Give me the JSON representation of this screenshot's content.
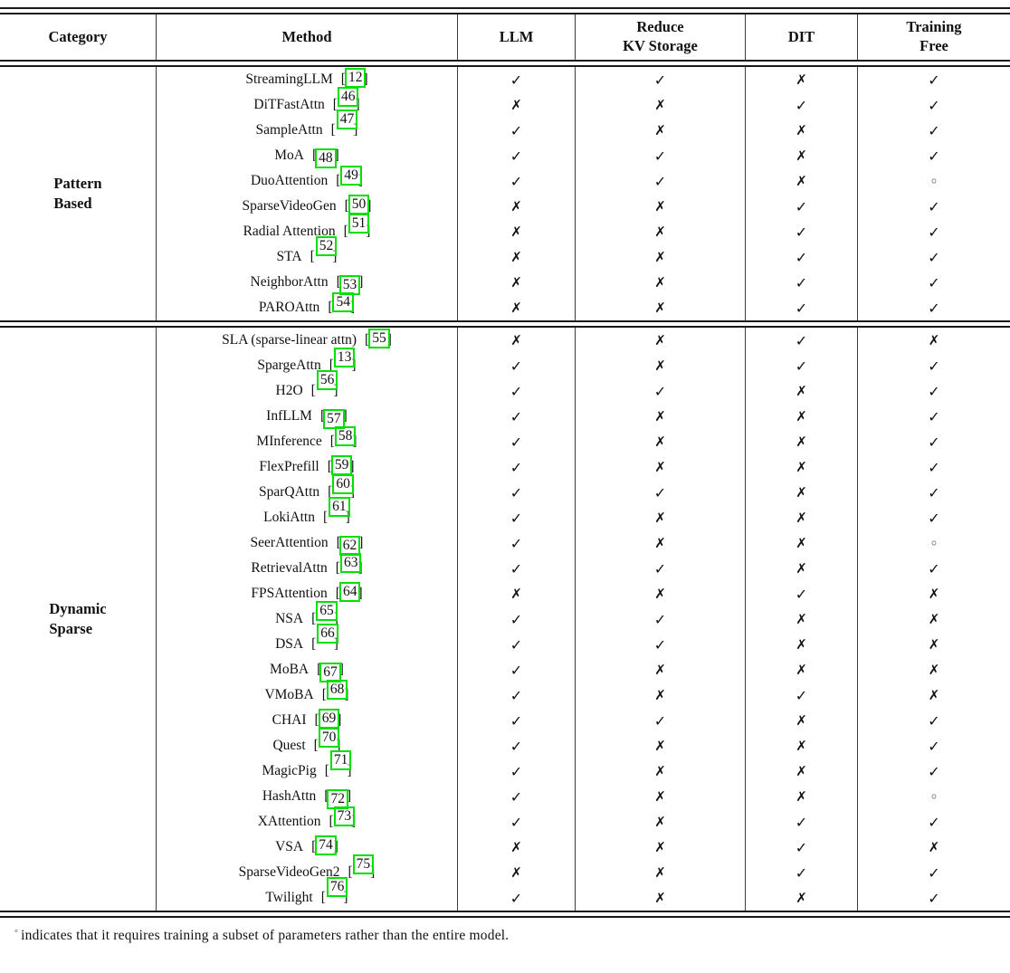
{
  "colors": {
    "citation_box": "#00e000",
    "rule": "#191919"
  },
  "footnote": {
    "symbol": "◦",
    "text": "indicates that it requires training a subset of parameters rather than the entire model."
  },
  "table": {
    "columns": [
      {
        "key": "category",
        "label": "Category"
      },
      {
        "key": "method",
        "label": "Method"
      },
      {
        "key": "llm",
        "label": "LLM"
      },
      {
        "key": "reduce_kv_storage",
        "label": "Reduce\nKV Storage"
      },
      {
        "key": "dit",
        "label": "DIT"
      },
      {
        "key": "training_free",
        "label": "Training\nFree"
      }
    ],
    "symbols": {
      "yes": "✓",
      "no": "✗",
      "partial": "◦"
    },
    "sections": [
      {
        "category": "Pattern\nBased",
        "rows": [
          {
            "method": "StreamingLLM",
            "cite": "12",
            "marks": [
              "yes",
              "yes",
              "no",
              "yes"
            ]
          },
          {
            "method": "DiTFastAttn",
            "cite": "46",
            "marks": [
              "no",
              "no",
              "yes",
              "yes"
            ]
          },
          {
            "method": "SampleAttn",
            "cite": "47",
            "marks": [
              "yes",
              "no",
              "no",
              "yes"
            ]
          },
          {
            "method": "MoA",
            "cite": "48",
            "marks": [
              "yes",
              "yes",
              "no",
              "yes"
            ]
          },
          {
            "method": "DuoAttention",
            "cite": "49",
            "marks": [
              "yes",
              "yes",
              "no",
              "partial"
            ]
          },
          {
            "method": "SparseVideoGen",
            "cite": "50",
            "marks": [
              "no",
              "no",
              "yes",
              "yes"
            ]
          },
          {
            "method": "Radial Attention",
            "cite": "51",
            "marks": [
              "no",
              "no",
              "yes",
              "yes"
            ]
          },
          {
            "method": "STA",
            "cite": "52",
            "marks": [
              "no",
              "no",
              "yes",
              "yes"
            ]
          },
          {
            "method": "NeighborAttn",
            "cite": "53",
            "marks": [
              "no",
              "no",
              "yes",
              "yes"
            ]
          },
          {
            "method": "PAROAttn",
            "cite": "54",
            "marks": [
              "no",
              "no",
              "yes",
              "yes"
            ]
          }
        ]
      },
      {
        "category": "Dynamic\nSparse",
        "rows": [
          {
            "method": "SLA (sparse-linear attn)",
            "cite": "55",
            "marks": [
              "no",
              "no",
              "yes",
              "no"
            ]
          },
          {
            "method": "SpargeAttn",
            "cite": "13",
            "marks": [
              "yes",
              "no",
              "yes",
              "yes"
            ]
          },
          {
            "method": "H2O",
            "cite": "56",
            "marks": [
              "yes",
              "yes",
              "no",
              "yes"
            ]
          },
          {
            "method": "InfLLM",
            "cite": "57",
            "marks": [
              "yes",
              "no",
              "no",
              "yes"
            ]
          },
          {
            "method": "MInference",
            "cite": "58",
            "marks": [
              "yes",
              "no",
              "no",
              "yes"
            ]
          },
          {
            "method": "FlexPrefill",
            "cite": "59",
            "marks": [
              "yes",
              "no",
              "no",
              "yes"
            ]
          },
          {
            "method": "SparQAttn",
            "cite": "60",
            "marks": [
              "yes",
              "yes",
              "no",
              "yes"
            ]
          },
          {
            "method": "LokiAttn",
            "cite": "61",
            "marks": [
              "yes",
              "no",
              "no",
              "yes"
            ]
          },
          {
            "method": "SeerAttention",
            "cite": "62",
            "marks": [
              "yes",
              "no",
              "no",
              "partial"
            ]
          },
          {
            "method": "RetrievalAttn",
            "cite": "63",
            "marks": [
              "yes",
              "yes",
              "no",
              "yes"
            ]
          },
          {
            "method": "FPSAttention",
            "cite": "64",
            "marks": [
              "no",
              "no",
              "yes",
              "no"
            ]
          },
          {
            "method": "NSA",
            "cite": "65",
            "marks": [
              "yes",
              "yes",
              "no",
              "no"
            ]
          },
          {
            "method": "DSA",
            "cite": "66",
            "marks": [
              "yes",
              "yes",
              "no",
              "no"
            ]
          },
          {
            "method": "MoBA",
            "cite": "67",
            "marks": [
              "yes",
              "no",
              "no",
              "no"
            ]
          },
          {
            "method": "VMoBA",
            "cite": "68",
            "marks": [
              "yes",
              "no",
              "yes",
              "no"
            ]
          },
          {
            "method": "CHAI",
            "cite": "69",
            "marks": [
              "yes",
              "yes",
              "no",
              "yes"
            ]
          },
          {
            "method": "Quest",
            "cite": "70",
            "marks": [
              "yes",
              "no",
              "no",
              "yes"
            ]
          },
          {
            "method": "MagicPig",
            "cite": "71",
            "marks": [
              "yes",
              "no",
              "no",
              "yes"
            ]
          },
          {
            "method": "HashAttn",
            "cite": "72",
            "marks": [
              "yes",
              "no",
              "no",
              "partial"
            ]
          },
          {
            "method": "XAttention",
            "cite": "73",
            "marks": [
              "yes",
              "no",
              "yes",
              "yes"
            ]
          },
          {
            "method": "VSA",
            "cite": "74",
            "marks": [
              "no",
              "no",
              "yes",
              "no"
            ]
          },
          {
            "method": "SparseVideoGen2",
            "cite": "75",
            "marks": [
              "no",
              "no",
              "yes",
              "yes"
            ]
          },
          {
            "method": "Twilight",
            "cite": "76",
            "marks": [
              "yes",
              "no",
              "no",
              "yes"
            ]
          }
        ]
      }
    ]
  }
}
